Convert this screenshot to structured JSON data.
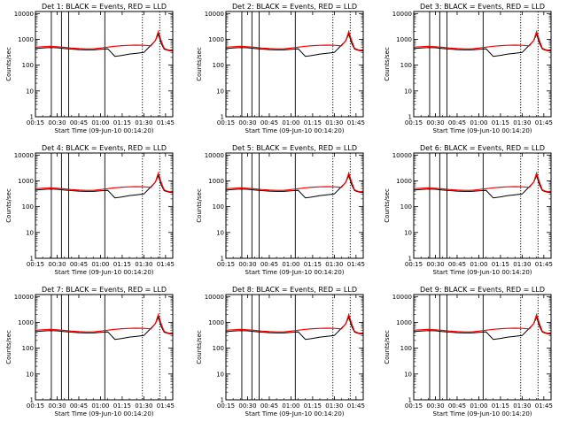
{
  "colors": {
    "events": "#000000",
    "lld": "#ff0000",
    "axes": "#000000",
    "background": "#ffffff"
  },
  "shared": {
    "xlabel": "Start Time (09-Jun-10 00:14:20)",
    "ylabel": "Counts/sec",
    "x_ticks": [
      "00:15",
      "00:30",
      "00:45",
      "01:00",
      "01:15",
      "01:30",
      "01:45"
    ],
    "y_ticks": [
      "1",
      "10",
      "100",
      "1000",
      "10000"
    ]
  },
  "chart_data": [
    {
      "type": "line",
      "title": "Det 1: BLACK = Events, RED = LLD",
      "xlabel": "Start Time (09-Jun-10 00:14:20)",
      "ylabel": "Counts/sec",
      "y_scale": "log",
      "ylim": [
        1,
        12000
      ],
      "xlim_minutes": [
        15,
        110
      ],
      "x": [
        15,
        20,
        25,
        30,
        35,
        40,
        45,
        50,
        55,
        60,
        65,
        70,
        75,
        80,
        85,
        90,
        95,
        98,
        100,
        102,
        104,
        106,
        108,
        110
      ],
      "series": [
        {
          "name": "Events",
          "values": [
            440,
            460,
            480,
            470,
            440,
            420,
            400,
            390,
            390,
            410,
            430,
            220,
            240,
            270,
            290,
            310,
            600,
            900,
            1600,
            700,
            420,
            380,
            360,
            350
          ]
        },
        {
          "name": "LLD",
          "values": [
            500,
            520,
            540,
            520,
            490,
            460,
            440,
            430,
            430,
            460,
            500,
            540,
            570,
            590,
            600,
            590,
            560,
            900,
            2000,
            900,
            450,
            400,
            380,
            370
          ]
        }
      ],
      "vlines_solid": [
        26,
        33,
        38,
        63
      ],
      "vlines_dotted": [
        89,
        101
      ]
    },
    {
      "type": "line",
      "title": "Det 2: BLACK = Events, RED = LLD",
      "xlabel": "Start Time (09-Jun-10 00:14:20)",
      "ylabel": "Counts/sec",
      "y_scale": "log",
      "ylim": [
        1,
        12000
      ],
      "xlim_minutes": [
        15,
        110
      ],
      "x": [
        15,
        20,
        25,
        30,
        35,
        40,
        45,
        50,
        55,
        60,
        65,
        70,
        75,
        80,
        85,
        90,
        95,
        98,
        100,
        102,
        104,
        106,
        108,
        110
      ],
      "series": [
        {
          "name": "Events",
          "values": [
            440,
            460,
            480,
            470,
            440,
            420,
            400,
            390,
            390,
            410,
            430,
            220,
            240,
            270,
            290,
            310,
            600,
            900,
            1600,
            700,
            420,
            380,
            360,
            350
          ]
        },
        {
          "name": "LLD",
          "values": [
            500,
            520,
            540,
            520,
            490,
            460,
            440,
            430,
            430,
            460,
            500,
            540,
            570,
            590,
            600,
            590,
            560,
            900,
            2000,
            900,
            450,
            400,
            380,
            370
          ]
        }
      ],
      "vlines_solid": [
        26,
        33,
        38,
        63
      ],
      "vlines_dotted": [
        89,
        101
      ]
    },
    {
      "type": "line",
      "title": "Det 3: BLACK = Events, RED = LLD",
      "xlabel": "Start Time (09-Jun-10 00:14:20)",
      "ylabel": "Counts/sec",
      "y_scale": "log",
      "ylim": [
        1,
        12000
      ],
      "xlim_minutes": [
        15,
        110
      ],
      "x": [
        15,
        20,
        25,
        30,
        35,
        40,
        45,
        50,
        55,
        60,
        65,
        70,
        75,
        80,
        85,
        90,
        95,
        98,
        100,
        102,
        104,
        106,
        108,
        110
      ],
      "series": [
        {
          "name": "Events",
          "values": [
            440,
            460,
            480,
            470,
            440,
            420,
            400,
            390,
            390,
            410,
            430,
            220,
            240,
            270,
            290,
            310,
            600,
            900,
            1600,
            700,
            420,
            380,
            360,
            350
          ]
        },
        {
          "name": "LLD",
          "values": [
            500,
            520,
            540,
            520,
            490,
            460,
            440,
            430,
            430,
            460,
            500,
            540,
            570,
            590,
            600,
            590,
            560,
            900,
            2000,
            900,
            450,
            400,
            380,
            370
          ]
        }
      ],
      "vlines_solid": [
        26,
        33,
        38,
        63
      ],
      "vlines_dotted": [
        89,
        101
      ]
    },
    {
      "type": "line",
      "title": "Det 4: BLACK = Events, RED = LLD",
      "xlabel": "Start Time (09-Jun-10 00:14:20)",
      "ylabel": "Counts/sec",
      "y_scale": "log",
      "ylim": [
        1,
        12000
      ],
      "xlim_minutes": [
        15,
        110
      ],
      "x": [
        15,
        20,
        25,
        30,
        35,
        40,
        45,
        50,
        55,
        60,
        65,
        70,
        75,
        80,
        85,
        90,
        95,
        98,
        100,
        102,
        104,
        106,
        108,
        110
      ],
      "series": [
        {
          "name": "Events",
          "values": [
            440,
            460,
            480,
            470,
            440,
            420,
            400,
            390,
            390,
            410,
            430,
            220,
            240,
            270,
            290,
            310,
            600,
            900,
            1600,
            700,
            420,
            380,
            360,
            350
          ]
        },
        {
          "name": "LLD",
          "values": [
            500,
            520,
            540,
            520,
            490,
            460,
            440,
            430,
            430,
            460,
            500,
            540,
            570,
            590,
            600,
            590,
            560,
            900,
            2000,
            900,
            450,
            400,
            380,
            370
          ]
        }
      ],
      "vlines_solid": [
        26,
        33,
        38,
        63
      ],
      "vlines_dotted": [
        89,
        101
      ]
    },
    {
      "type": "line",
      "title": "Det 5: BLACK = Events, RED = LLD",
      "xlabel": "Start Time (09-Jun-10 00:14:20)",
      "ylabel": "Counts/sec",
      "y_scale": "log",
      "ylim": [
        1,
        12000
      ],
      "xlim_minutes": [
        15,
        110
      ],
      "x": [
        15,
        20,
        25,
        30,
        35,
        40,
        45,
        50,
        55,
        60,
        65,
        70,
        75,
        80,
        85,
        90,
        95,
        98,
        100,
        102,
        104,
        106,
        108,
        110
      ],
      "series": [
        {
          "name": "Events",
          "values": [
            440,
            460,
            480,
            470,
            440,
            420,
            400,
            390,
            390,
            410,
            430,
            220,
            240,
            270,
            290,
            310,
            600,
            900,
            1600,
            700,
            420,
            380,
            360,
            350
          ]
        },
        {
          "name": "LLD",
          "values": [
            500,
            520,
            540,
            520,
            490,
            460,
            440,
            430,
            430,
            460,
            500,
            540,
            570,
            590,
            600,
            590,
            560,
            900,
            2000,
            900,
            450,
            400,
            380,
            370
          ]
        }
      ],
      "vlines_solid": [
        26,
        33,
        38,
        63
      ],
      "vlines_dotted": [
        89,
        101
      ]
    },
    {
      "type": "line",
      "title": "Det 6: BLACK = Events, RED = LLD",
      "xlabel": "Start Time (09-Jun-10 00:14:20)",
      "ylabel": "Counts/sec",
      "y_scale": "log",
      "ylim": [
        1,
        12000
      ],
      "xlim_minutes": [
        15,
        110
      ],
      "x": [
        15,
        20,
        25,
        30,
        35,
        40,
        45,
        50,
        55,
        60,
        65,
        70,
        75,
        80,
        85,
        90,
        95,
        98,
        100,
        102,
        104,
        106,
        108,
        110
      ],
      "series": [
        {
          "name": "Events",
          "values": [
            440,
            460,
            480,
            470,
            440,
            420,
            400,
            390,
            390,
            410,
            430,
            220,
            240,
            270,
            290,
            310,
            600,
            900,
            1600,
            700,
            420,
            380,
            360,
            350
          ]
        },
        {
          "name": "LLD",
          "values": [
            500,
            520,
            540,
            520,
            490,
            460,
            440,
            430,
            430,
            460,
            500,
            540,
            570,
            590,
            600,
            590,
            560,
            900,
            2000,
            900,
            450,
            400,
            380,
            370
          ]
        }
      ],
      "vlines_solid": [
        26,
        33,
        38,
        63
      ],
      "vlines_dotted": [
        89,
        101
      ]
    },
    {
      "type": "line",
      "title": "Det 7: BLACK = Events, RED = LLD",
      "xlabel": "Start Time (09-Jun-10 00:14:20)",
      "ylabel": "Counts/sec",
      "y_scale": "log",
      "ylim": [
        1,
        12000
      ],
      "xlim_minutes": [
        15,
        110
      ],
      "x": [
        15,
        20,
        25,
        30,
        35,
        40,
        45,
        50,
        55,
        60,
        65,
        70,
        75,
        80,
        85,
        90,
        95,
        98,
        100,
        102,
        104,
        106,
        108,
        110
      ],
      "series": [
        {
          "name": "Events",
          "values": [
            440,
            460,
            480,
            470,
            440,
            420,
            400,
            390,
            390,
            410,
            430,
            220,
            240,
            270,
            290,
            310,
            600,
            900,
            1600,
            700,
            420,
            380,
            360,
            350
          ]
        },
        {
          "name": "LLD",
          "values": [
            500,
            520,
            540,
            520,
            490,
            460,
            440,
            430,
            430,
            460,
            500,
            540,
            570,
            590,
            600,
            590,
            560,
            900,
            2000,
            900,
            450,
            400,
            380,
            370
          ]
        }
      ],
      "vlines_solid": [
        26,
        33,
        38,
        63
      ],
      "vlines_dotted": [
        89,
        101
      ]
    },
    {
      "type": "line",
      "title": "Det 8: BLACK = Events, RED = LLD",
      "xlabel": "Start Time (09-Jun-10 00:14:20)",
      "ylabel": "Counts/sec",
      "y_scale": "log",
      "ylim": [
        1,
        12000
      ],
      "xlim_minutes": [
        15,
        110
      ],
      "x": [
        15,
        20,
        25,
        30,
        35,
        40,
        45,
        50,
        55,
        60,
        65,
        70,
        75,
        80,
        85,
        90,
        95,
        98,
        100,
        102,
        104,
        106,
        108,
        110
      ],
      "series": [
        {
          "name": "Events",
          "values": [
            440,
            460,
            480,
            470,
            440,
            420,
            400,
            390,
            390,
            410,
            430,
            220,
            240,
            270,
            290,
            310,
            600,
            900,
            1600,
            700,
            420,
            380,
            360,
            350
          ]
        },
        {
          "name": "LLD",
          "values": [
            500,
            520,
            540,
            520,
            490,
            460,
            440,
            430,
            430,
            460,
            500,
            540,
            570,
            590,
            600,
            590,
            560,
            900,
            2000,
            900,
            450,
            400,
            380,
            370
          ]
        }
      ],
      "vlines_solid": [
        26,
        33,
        38,
        63
      ],
      "vlines_dotted": [
        89,
        101
      ]
    },
    {
      "type": "line",
      "title": "Det 9: BLACK = Events, RED = LLD",
      "xlabel": "Start Time (09-Jun-10 00:14:20)",
      "ylabel": "Counts/sec",
      "y_scale": "log",
      "ylim": [
        1,
        12000
      ],
      "xlim_minutes": [
        15,
        110
      ],
      "x": [
        15,
        20,
        25,
        30,
        35,
        40,
        45,
        50,
        55,
        60,
        65,
        70,
        75,
        80,
        85,
        90,
        95,
        98,
        100,
        102,
        104,
        106,
        108,
        110
      ],
      "series": [
        {
          "name": "Events",
          "values": [
            440,
            460,
            480,
            470,
            440,
            420,
            400,
            390,
            390,
            410,
            430,
            220,
            240,
            270,
            290,
            310,
            600,
            900,
            1600,
            700,
            420,
            380,
            360,
            350
          ]
        },
        {
          "name": "LLD",
          "values": [
            500,
            520,
            540,
            520,
            490,
            460,
            440,
            430,
            430,
            460,
            500,
            540,
            570,
            590,
            600,
            590,
            560,
            900,
            2000,
            900,
            450,
            400,
            380,
            370
          ]
        }
      ],
      "vlines_solid": [
        26,
        33,
        38,
        63
      ],
      "vlines_dotted": [
        89,
        101
      ]
    }
  ]
}
